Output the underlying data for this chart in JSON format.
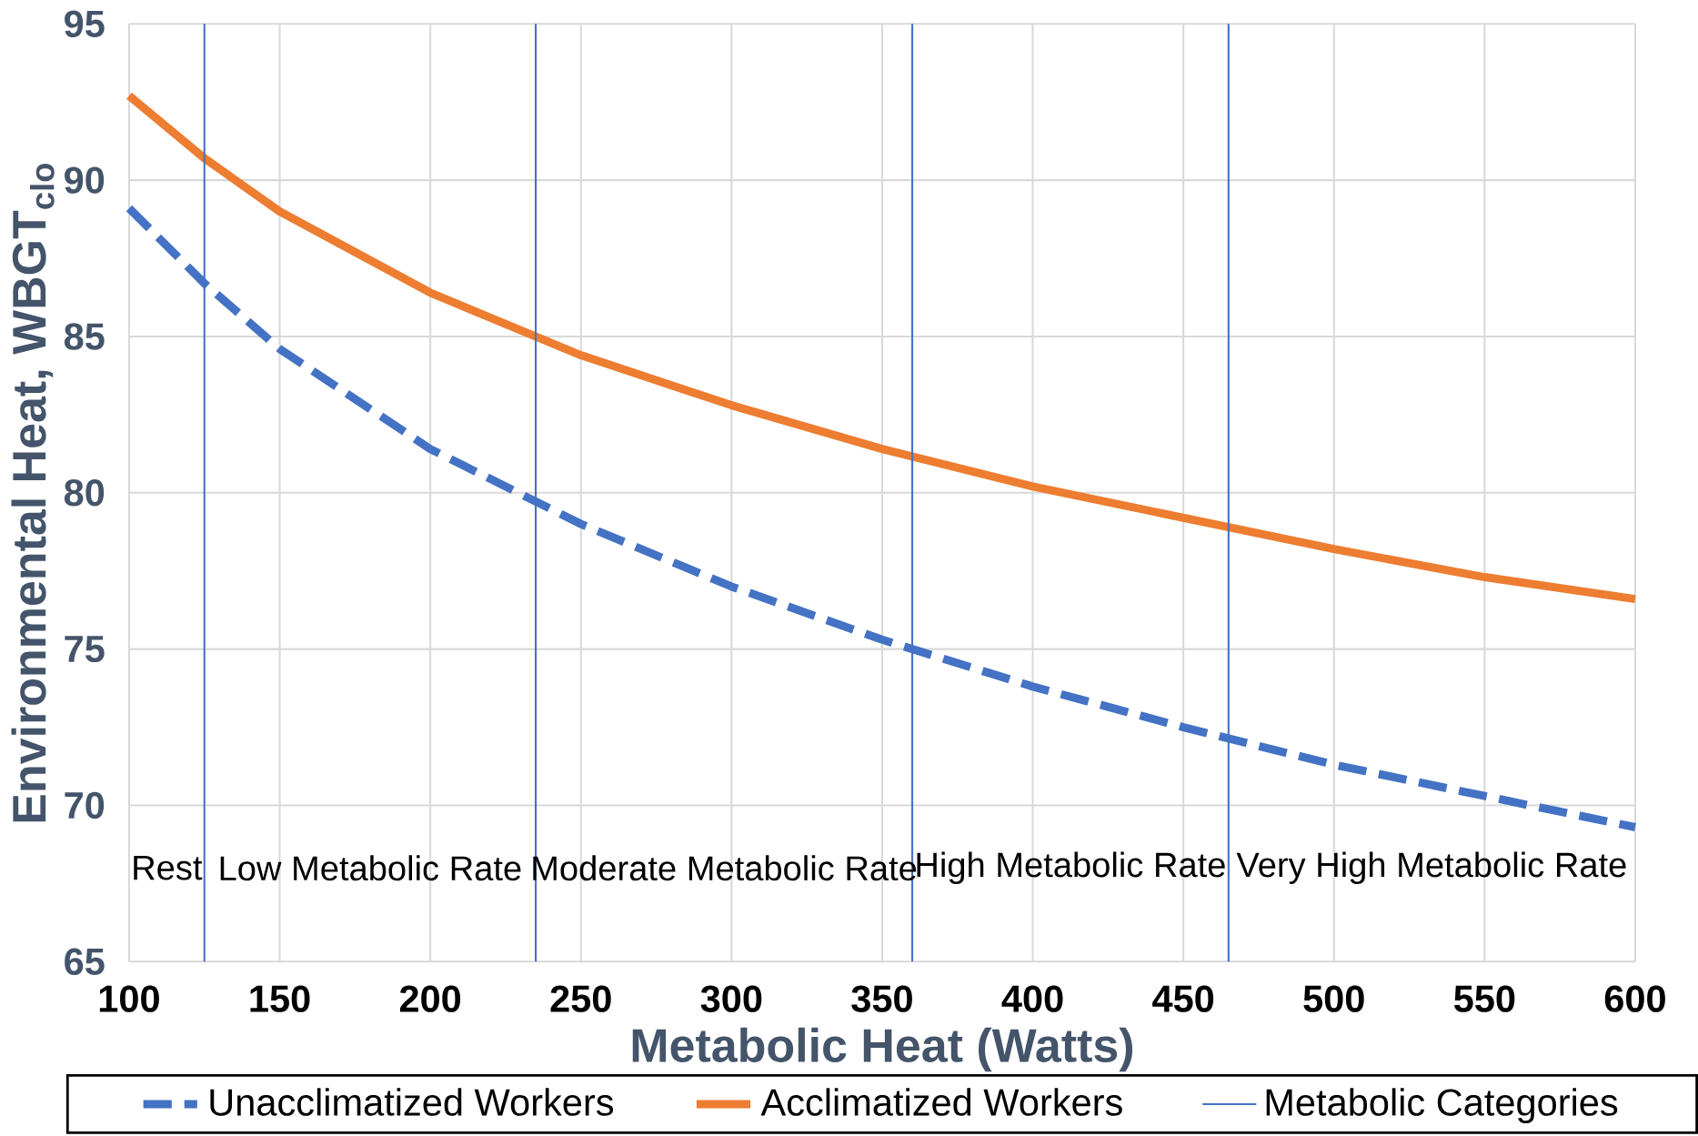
{
  "chart_data": {
    "type": "line",
    "xlabel": "Metabolic Heat (Watts)",
    "ylabel": "Environmental Heat, WBGT$_{clo}$",
    "x": [
      100,
      125,
      150,
      200,
      250,
      300,
      350,
      400,
      450,
      500,
      550,
      600
    ],
    "series": [
      {
        "name": "Unacclimatized Workers",
        "color": "#4472c4",
        "line_style": "dashed",
        "values": [
          89.1,
          86.7,
          84.6,
          81.4,
          79.0,
          77.0,
          75.3,
          73.8,
          72.5,
          71.3,
          70.3,
          69.3
        ]
      },
      {
        "name": "Acclimatized Workers",
        "color": "#ed7d31",
        "line_style": "solid",
        "values": [
          92.7,
          90.7,
          89.0,
          86.4,
          84.4,
          82.8,
          81.4,
          80.2,
          79.2,
          78.2,
          77.3,
          76.6
        ]
      },
      {
        "name": "Metabolic Categories",
        "color": "#4472c4",
        "line_style": "solid",
        "x": [
          125,
          125,
          null,
          235,
          235,
          null,
          360,
          360,
          null,
          465,
          465
        ],
        "values": [
          65,
          95,
          null,
          65,
          95,
          null,
          65,
          95,
          null,
          65,
          95
        ]
      }
    ],
    "xlim": [
      100,
      600
    ],
    "xticks": [
      100,
      150,
      200,
      250,
      300,
      350,
      400,
      450,
      500,
      550,
      600
    ],
    "ylim": [
      65,
      95
    ],
    "yticks": [
      65,
      70,
      75,
      80,
      85,
      90,
      95
    ],
    "grid": true,
    "legend": "bottom",
    "marker": "none",
    "annotations": [
      "Rest",
      "Low Metabolic Rate",
      "Moderate Metabolic Rate",
      "High Metabolic Rate",
      "Very High Metabolic Rate"
    ]
  }
}
